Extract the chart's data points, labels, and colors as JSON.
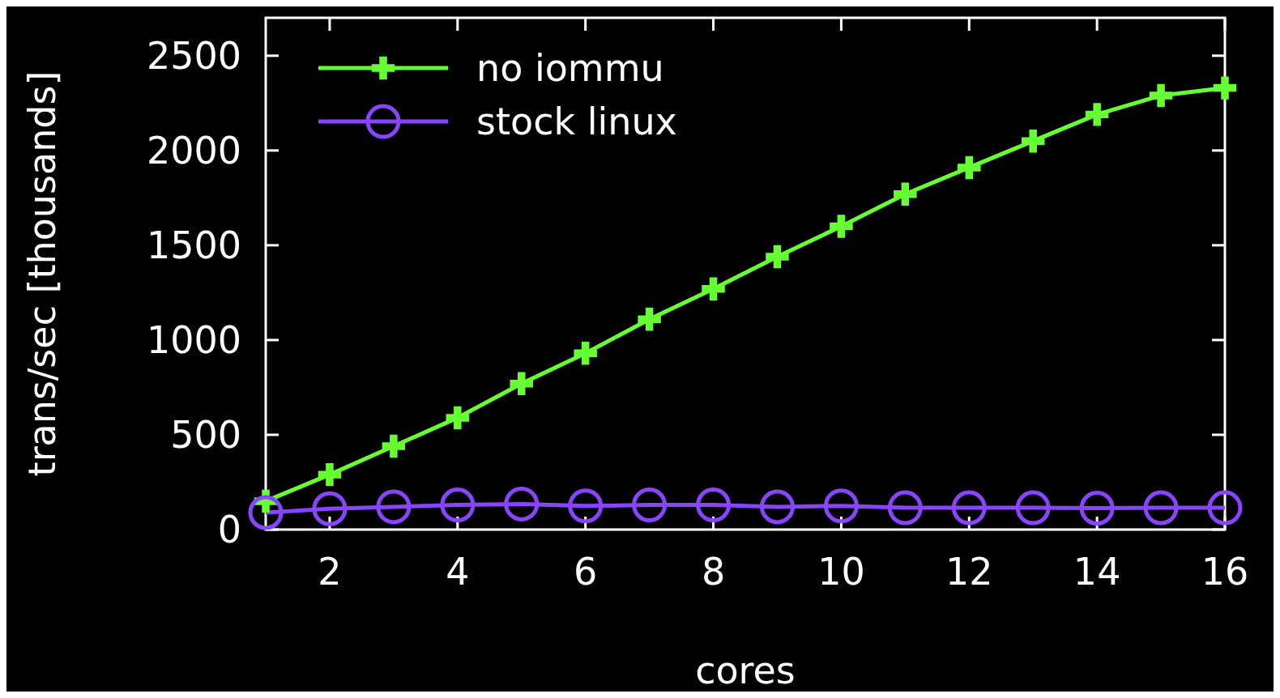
{
  "chart_data": {
    "type": "line",
    "xlabel": "cores",
    "ylabel": "trans/sec [thousands]",
    "x": [
      1,
      2,
      3,
      4,
      5,
      6,
      7,
      8,
      9,
      10,
      11,
      12,
      13,
      14,
      15,
      16
    ],
    "series": [
      {
        "name": "no iommu",
        "color": "#66ff33",
        "marker": "cross",
        "values": [
          150,
          290,
          440,
          590,
          770,
          930,
          1110,
          1270,
          1440,
          1600,
          1770,
          1910,
          2050,
          2190,
          2290,
          2330
        ]
      },
      {
        "name": "stock linux",
        "color": "#8844ff",
        "marker": "circle",
        "values": [
          90,
          110,
          120,
          130,
          135,
          125,
          130,
          130,
          120,
          125,
          115,
          115,
          115,
          113,
          115,
          115
        ]
      }
    ],
    "xlim": [
      1,
      16
    ],
    "ylim": [
      0,
      2700
    ],
    "xticks": [
      2,
      4,
      6,
      8,
      10,
      12,
      14,
      16
    ],
    "yticks": [
      0,
      500,
      1000,
      1500,
      2000,
      2500
    ],
    "grid": false,
    "legend": "top left"
  }
}
